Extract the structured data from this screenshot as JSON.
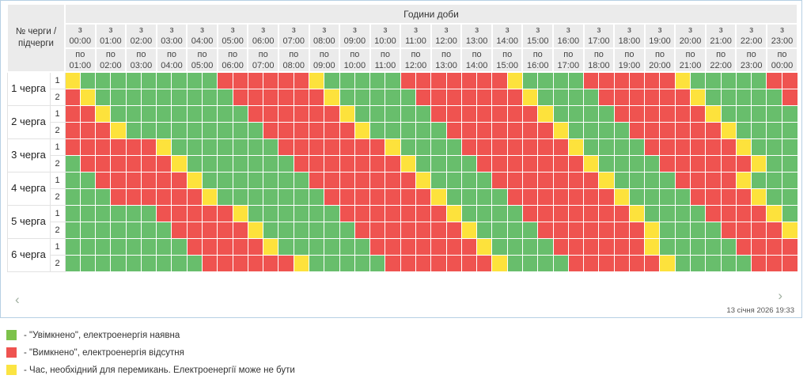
{
  "colors": {
    "G": "#68be6c",
    "R": "#ef5350",
    "Y": "#fde23c"
  },
  "panel": {
    "header": {
      "corner_label": "№ черги / підчерги",
      "hours_title": "Години доби",
      "from_prefix": "з",
      "to_prefix": "по",
      "columns": [
        {
          "from": "00:00",
          "to": "01:00"
        },
        {
          "from": "01:00",
          "to": "02:00"
        },
        {
          "from": "02:00",
          "to": "03:00"
        },
        {
          "from": "03:00",
          "to": "04:00"
        },
        {
          "from": "04:00",
          "to": "05:00"
        },
        {
          "from": "05:00",
          "to": "06:00"
        },
        {
          "from": "06:00",
          "to": "07:00"
        },
        {
          "from": "07:00",
          "to": "08:00"
        },
        {
          "from": "08:00",
          "to": "09:00"
        },
        {
          "from": "09:00",
          "to": "10:00"
        },
        {
          "from": "10:00",
          "to": "11:00"
        },
        {
          "from": "11:00",
          "to": "12:00"
        },
        {
          "from": "12:00",
          "to": "13:00"
        },
        {
          "from": "13:00",
          "to": "14:00"
        },
        {
          "from": "14:00",
          "to": "15:00"
        },
        {
          "from": "15:00",
          "to": "16:00"
        },
        {
          "from": "16:00",
          "to": "17:00"
        },
        {
          "from": "17:00",
          "to": "18:00"
        },
        {
          "from": "18:00",
          "to": "19:00"
        },
        {
          "from": "19:00",
          "to": "20:00"
        },
        {
          "from": "20:00",
          "to": "21:00"
        },
        {
          "from": "21:00",
          "to": "22:00"
        },
        {
          "from": "22:00",
          "to": "23:00"
        },
        {
          "from": "23:00",
          "to": "00:00"
        }
      ]
    },
    "schedule": {
      "cell_minutes": 30,
      "legend_codes": {
        "G": "on",
        "R": "off",
        "Y": "switching"
      },
      "queues": [
        {
          "label": "1 черга",
          "rows": [
            {
              "sub": "1",
              "cells": "YGGGGGGGGGRRRRRRYGGGGGRRRRRRRYGGGGRRRRRRYGGGGGRR"
            },
            {
              "sub": "2",
              "cells": "RYGGGGGGGGGRRRRRRYGGGGGRRRRRRRYGGGGRRRRRRYGGGGGR"
            }
          ]
        },
        {
          "label": "2 черга",
          "rows": [
            {
              "sub": "1",
              "cells": "RRYGGGGGGGGGRRRRRRYGGGGGRRRRRRRYGGGGRRRRRRYGGGGG"
            },
            {
              "sub": "2",
              "cells": "RRRYGGGGGGGGGRRRRRRYGGGGGRRRRRRRYGGGGRRRRRRYGGGG"
            }
          ]
        },
        {
          "label": "3 черга",
          "rows": [
            {
              "sub": "1",
              "cells": "RRRRRRYGGGGGGGRRRRRRRYGGGGRRRRRRRYGGGGRRRRRRYGGG"
            },
            {
              "sub": "2",
              "cells": "GRRRRRRYGGGGGGGRRRRRRRYGGGGRRRRRRRYGGGGRRRRRRYGG"
            }
          ]
        },
        {
          "label": "4 черга",
          "rows": [
            {
              "sub": "1",
              "cells": "GGRRRRRRYGGGGGGGRRRRRRRYGGGGRRRRRRRYGGGGRRRRYGGG"
            },
            {
              "sub": "2",
              "cells": "GGGRRRRRRYGGGGGGGRRRRRRRYGGGGRRRRRRRYGGGGRRRRYGG"
            }
          ]
        },
        {
          "label": "5 черга",
          "rows": [
            {
              "sub": "1",
              "cells": "GGGGGGRRRRRYGGGGGGRRRRRRRYGGGGRRRRRRRYGGGGRRRRYG"
            },
            {
              "sub": "2",
              "cells": "GGGGGGGRRRRRYGGGGGGRRRRRRRYGGGGRRRRRRRYGGGGRRRRY"
            }
          ]
        },
        {
          "label": "6 черга",
          "rows": [
            {
              "sub": "1",
              "cells": "GGGGGGGGRRRRRYGGGGGGRRRRRRRYGGGGRRRRRRYGGGGGRRRR"
            },
            {
              "sub": "2",
              "cells": "GGGGGGGGGRRRRRRYGGGGGRRRRRRRYGGGGRRRRRRYGGGGGRRR"
            }
          ]
        }
      ]
    },
    "footer": {
      "prev_icon": "‹",
      "next_icon": "›",
      "timestamp": "13 січня 2026 19:33"
    }
  },
  "legend": {
    "items": [
      {
        "key": "on",
        "color": "#7dc24b",
        "label": "- \"Увімкнено\", електроенергія наявна"
      },
      {
        "key": "off",
        "color": "#ef5350",
        "label": "- \"Вимкнено\", електроенергія відсутня"
      },
      {
        "key": "switching",
        "color": "#fbe442",
        "label": "- Час, необхідний для перемикань. Електроенергії може не бути"
      }
    ]
  }
}
